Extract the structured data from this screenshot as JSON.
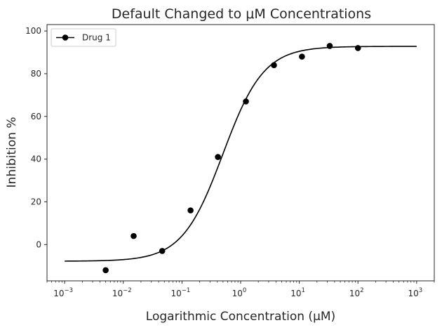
{
  "chart_data": {
    "type": "scatter",
    "title": "Default Changed to μM Concentrations",
    "xlabel": "Logarithmic Concentration (μM)",
    "ylabel": "Inhibition %",
    "xscale": "log",
    "xlim": [
      0.0005,
      2000
    ],
    "ylim": [
      -17,
      103
    ],
    "x_ticks": [
      0.001,
      0.01,
      0.1,
      1,
      10,
      100,
      1000
    ],
    "x_tick_labels": [
      {
        "base": "10",
        "exp": "−3"
      },
      {
        "base": "10",
        "exp": "−2"
      },
      {
        "base": "10",
        "exp": "−1"
      },
      {
        "base": "10",
        "exp": "0"
      },
      {
        "base": "10",
        "exp": "1"
      },
      {
        "base": "10",
        "exp": "2"
      },
      {
        "base": "10",
        "exp": "3"
      }
    ],
    "y_ticks": [
      0,
      20,
      40,
      60,
      80,
      100
    ],
    "y_tick_labels": [
      "0",
      "20",
      "40",
      "60",
      "80",
      "100"
    ],
    "grid": false,
    "legend": {
      "position": "top-left",
      "entries": [
        "Drug 1"
      ]
    },
    "series": [
      {
        "name": "Drug 1",
        "color": "#000000",
        "points": [
          {
            "x": 0.005,
            "y": -12
          },
          {
            "x": 0.015,
            "y": 4
          },
          {
            "x": 0.046,
            "y": -3
          },
          {
            "x": 0.14,
            "y": 16
          },
          {
            "x": 0.41,
            "y": 41
          },
          {
            "x": 1.23,
            "y": 67
          },
          {
            "x": 3.7,
            "y": 84
          },
          {
            "x": 11.1,
            "y": 88
          },
          {
            "x": 33,
            "y": 93
          },
          {
            "x": 100,
            "y": 92
          }
        ],
        "fit": {
          "model": "4PL",
          "bottom": -7.8,
          "top": 92.8,
          "ec50": 0.5,
          "hill": 1.25,
          "x_range": [
            0.001,
            1000
          ]
        }
      }
    ]
  }
}
